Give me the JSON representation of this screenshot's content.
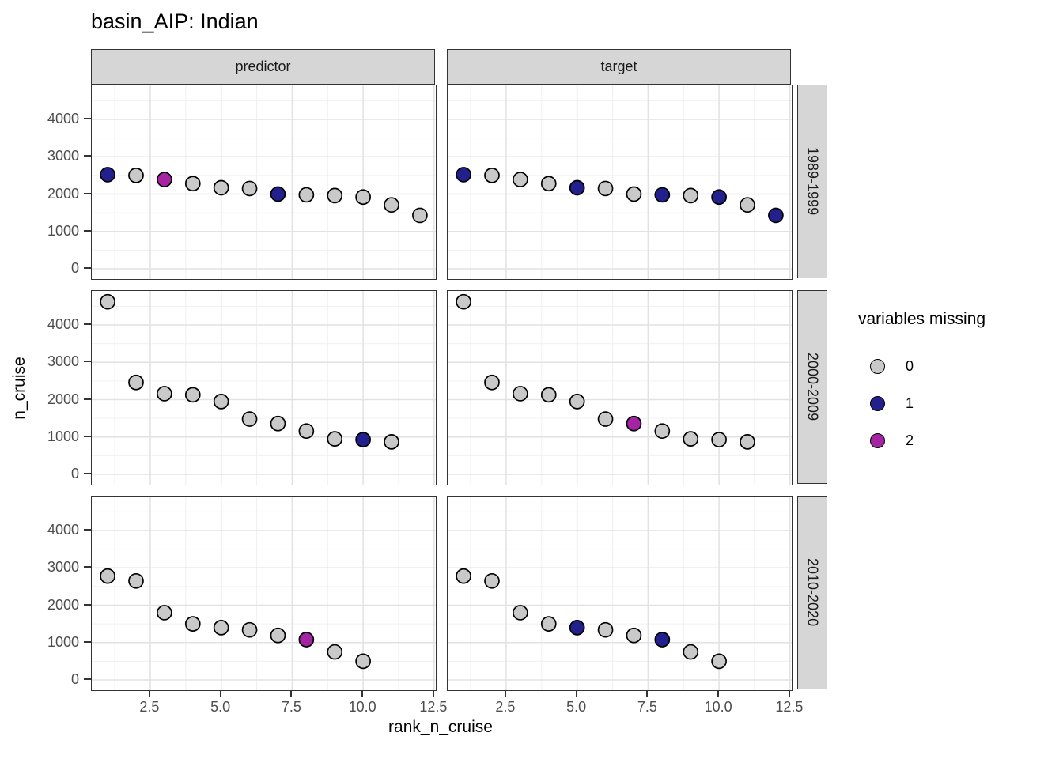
{
  "chart_data": {
    "type": "scatter",
    "title": "basin_AIP: Indian",
    "xlabel": "rank_n_cruise",
    "ylabel": "n_cruise",
    "facet_columns": [
      "predictor",
      "target"
    ],
    "facet_rows": [
      "1989-1999",
      "2000-2009",
      "2010-2020"
    ],
    "x_ticks": [
      "2.5",
      "5.0",
      "7.5",
      "10.0",
      "12.5"
    ],
    "x_tick_values": [
      2.5,
      5,
      7.5,
      10,
      12.5
    ],
    "x_minor_gridlines": [
      1.25,
      3.75,
      6.25,
      8.75,
      11.25
    ],
    "y_ticks": [
      "0",
      "1000",
      "2000",
      "3000",
      "4000"
    ],
    "y_tick_values": [
      0,
      1000,
      2000,
      3000,
      4000
    ],
    "y_minor_gridlines": [
      500,
      1500,
      2500,
      3500,
      4500
    ],
    "x_domain": [
      0.44,
      12.56
    ],
    "y_domain": [
      -275,
      4910
    ],
    "grid": true,
    "legend": {
      "title": "variables missing",
      "position": "right",
      "entries": [
        {
          "label": "0",
          "color": "#C9C9C9"
        },
        {
          "label": "1",
          "color": "#21208C"
        },
        {
          "label": "2",
          "color": "#A424A4"
        }
      ]
    },
    "point_stroke": "#000000",
    "panels": [
      {
        "facet_col": "predictor",
        "facet_row": "1989-1999",
        "x": [
          1,
          2,
          3,
          4,
          5,
          6,
          7,
          8,
          9,
          10,
          11,
          12
        ],
        "y": [
          2520,
          2500,
          2390,
          2280,
          2170,
          2150,
          2000,
          1980,
          1960,
          1920,
          1710,
          1430
        ],
        "missing": [
          1,
          0,
          2,
          0,
          0,
          0,
          1,
          0,
          0,
          0,
          0,
          0
        ]
      },
      {
        "facet_col": "target",
        "facet_row": "1989-1999",
        "x": [
          1,
          2,
          3,
          4,
          5,
          6,
          7,
          8,
          9,
          10,
          11,
          12
        ],
        "y": [
          2520,
          2500,
          2390,
          2280,
          2170,
          2150,
          2000,
          1980,
          1960,
          1920,
          1710,
          1430
        ],
        "missing": [
          1,
          0,
          0,
          0,
          1,
          0,
          0,
          1,
          0,
          1,
          0,
          1
        ]
      },
      {
        "facet_col": "predictor",
        "facet_row": "2000-2009",
        "x": [
          1,
          2,
          3,
          4,
          5,
          6,
          7,
          8,
          9,
          10,
          11
        ],
        "y": [
          4620,
          2460,
          2160,
          2130,
          1950,
          1480,
          1360,
          1160,
          950,
          930,
          870
        ],
        "missing": [
          0,
          0,
          0,
          0,
          0,
          0,
          0,
          0,
          0,
          1,
          0
        ]
      },
      {
        "facet_col": "target",
        "facet_row": "2000-2009",
        "x": [
          1,
          2,
          3,
          4,
          5,
          6,
          7,
          8,
          9,
          10,
          11
        ],
        "y": [
          4620,
          2460,
          2160,
          2130,
          1950,
          1480,
          1360,
          1160,
          950,
          930,
          870
        ],
        "missing": [
          0,
          0,
          0,
          0,
          0,
          0,
          2,
          0,
          0,
          0,
          0
        ]
      },
      {
        "facet_col": "predictor",
        "facet_row": "2010-2020",
        "x": [
          1,
          2,
          3,
          4,
          5,
          6,
          7,
          8,
          9,
          10
        ],
        "y": [
          2780,
          2650,
          1800,
          1500,
          1400,
          1340,
          1190,
          1080,
          750,
          500
        ],
        "missing": [
          0,
          0,
          0,
          0,
          0,
          0,
          0,
          2,
          0,
          0
        ]
      },
      {
        "facet_col": "target",
        "facet_row": "2010-2020",
        "x": [
          1,
          2,
          3,
          4,
          5,
          6,
          7,
          8,
          9,
          10
        ],
        "y": [
          2780,
          2650,
          1800,
          1500,
          1400,
          1340,
          1190,
          1080,
          750,
          500
        ],
        "missing": [
          0,
          0,
          0,
          0,
          1,
          0,
          0,
          1,
          0,
          0
        ]
      }
    ]
  }
}
